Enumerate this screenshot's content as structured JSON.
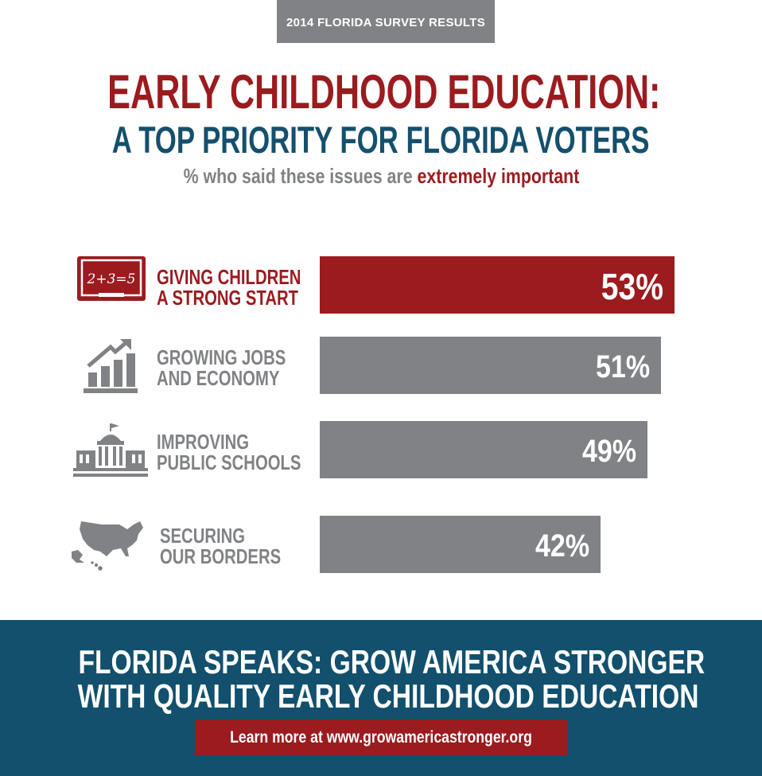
{
  "header": {
    "tag": "2014 FLORIDA SURVEY RESULTS",
    "title_line_1": "EARLY CHILDHOOD EDUCATION:",
    "title_line_2": "A TOP PRIORITY FOR FLORIDA VOTERS",
    "subtitle_prefix": "% who said these issues are",
    "subtitle_emphasis": "extremely important"
  },
  "chart_data": {
    "type": "bar",
    "orientation": "horizontal",
    "title": "EARLY CHILDHOOD EDUCATION: A TOP PRIORITY FOR FLORIDA VOTERS",
    "subtitle": "% who said these issues are extremely important",
    "categories": [
      [
        "GIVING CHILDREN",
        "A STRONG START"
      ],
      [
        "GROWING JOBS",
        "AND ECONOMY"
      ],
      [
        "IMPROVING",
        "PUBLIC SCHOOLS"
      ],
      [
        "SECURING",
        "OUR BORDERS"
      ]
    ],
    "values": [
      53,
      51,
      49,
      42
    ],
    "value_labels": [
      "53%",
      "51%",
      "49%",
      "42%"
    ],
    "icons": [
      "chalkboard-icon",
      "growth-chart-icon",
      "capitol-building-icon",
      "us-map-icon"
    ],
    "highlight_index": 0,
    "colors": {
      "highlight": "#9b1b1f",
      "default": "#808285"
    },
    "xlim": [
      0,
      53
    ],
    "grid": false,
    "legend": "none"
  },
  "footer": {
    "line_1": "FLORIDA SPEAKS: GROW AMERICA STRONGER",
    "line_2": "WITH QUALITY EARLY CHILDHOOD EDUCATION",
    "link_label": "Learn more at www.growamericastronger.org"
  },
  "colors": {
    "brand_red": "#9b1b1f",
    "brand_blue": "#15506d",
    "footer_blue": "#12506d",
    "gray": "#808285"
  }
}
